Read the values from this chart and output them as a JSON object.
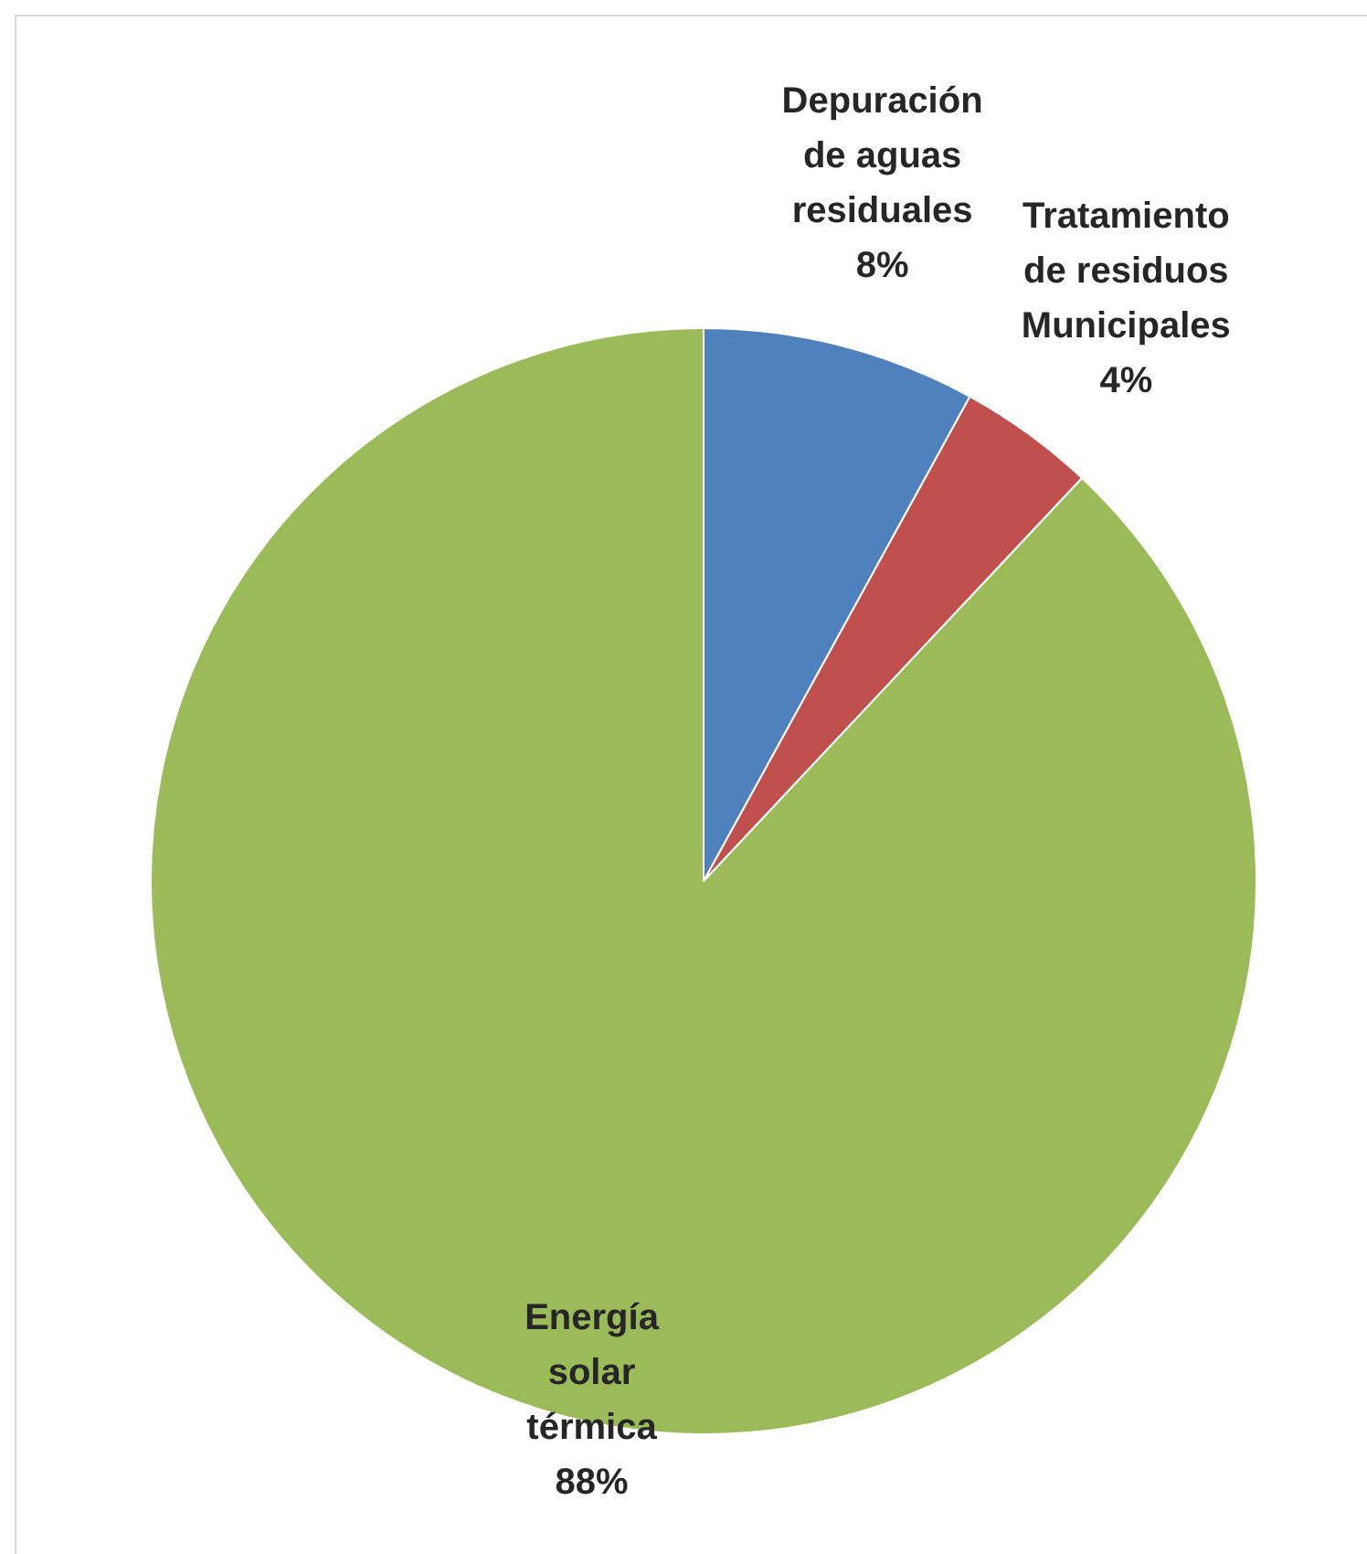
{
  "chart_data": {
    "type": "pie",
    "categories": [
      "Depuración de aguas residuales",
      "Tratamiento de residuos Municipales",
      "Energía solar térmica"
    ],
    "values": [
      8,
      4,
      88
    ],
    "colors": [
      "#4f81bd",
      "#c0504d",
      "#9bbb59"
    ],
    "value_labels": [
      "8%",
      "4%",
      "88%"
    ],
    "legend": false
  }
}
